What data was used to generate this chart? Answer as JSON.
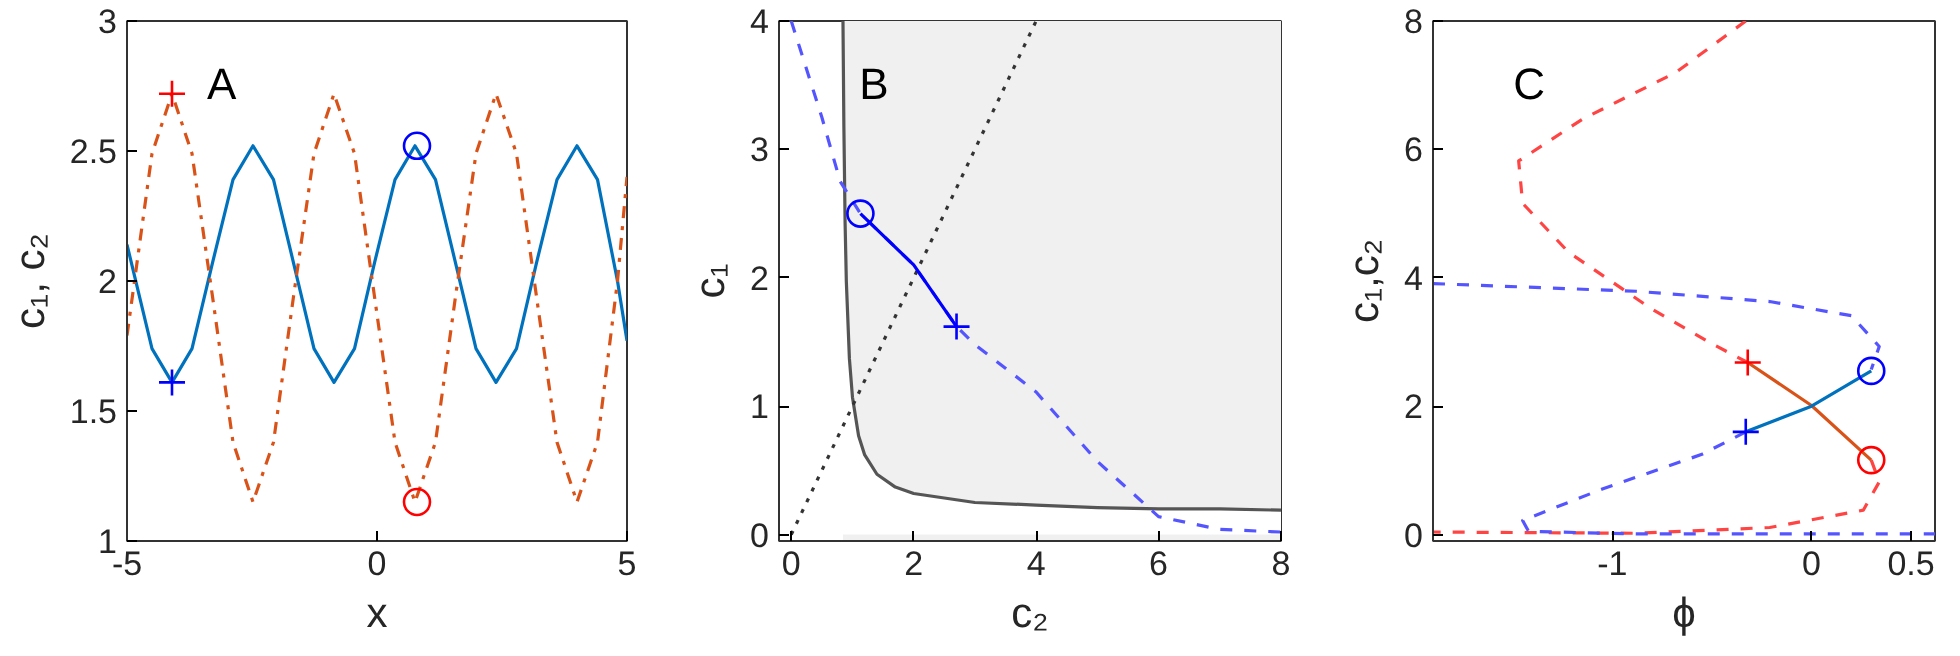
{
  "chart_data": [
    {
      "type": "line",
      "xlabel": "x",
      "ylabel": "c₁, c₂",
      "xlim": [
        -5,
        5
      ],
      "ylim": [
        1,
        3
      ],
      "xticks": [
        -5,
        0,
        5
      ],
      "yticks": [
        1,
        1.5,
        2,
        2.5,
        3
      ],
      "annotations": [
        "A"
      ],
      "series": [
        {
          "color": "#0072bd",
          "line_style": "solid",
          "x": [
            -5.0,
            -4.5,
            -4.1,
            -3.7,
            -3.29,
            -2.88,
            -2.48,
            -2.07,
            -1.67,
            -1.26,
            -0.86,
            -0.45,
            -0.05,
            0.36,
            0.76,
            1.17,
            1.57,
            1.98,
            2.38,
            2.79,
            3.19,
            3.6,
            4.0,
            4.41,
            4.81,
            5.0
          ],
          "values": [
            2.14,
            1.74,
            1.61,
            1.74,
            2.07,
            2.39,
            2.52,
            2.39,
            2.07,
            1.74,
            1.61,
            1.74,
            2.07,
            2.39,
            2.52,
            2.39,
            2.07,
            1.74,
            1.61,
            1.74,
            2.07,
            2.39,
            2.52,
            2.39,
            2.0,
            1.77
          ]
        },
        {
          "color": "#d95319",
          "line_style": "dashdot",
          "x": [
            -5.0,
            -4.5,
            -4.1,
            -3.7,
            -3.29,
            -2.88,
            -2.48,
            -2.07,
            -1.67,
            -1.26,
            -0.86,
            -0.45,
            -0.05,
            0.36,
            0.76,
            1.17,
            1.57,
            1.98,
            2.38,
            2.79,
            3.19,
            3.6,
            4.0,
            4.41,
            4.81,
            5.0
          ],
          "values": [
            1.79,
            2.49,
            2.72,
            2.49,
            1.94,
            1.38,
            1.15,
            1.38,
            1.94,
            2.49,
            2.72,
            2.49,
            1.94,
            1.38,
            1.15,
            1.38,
            1.94,
            2.49,
            2.72,
            2.49,
            1.94,
            1.38,
            1.15,
            1.38,
            2.0,
            2.4
          ]
        },
        {
          "type": "scatter",
          "color": "#ff0000",
          "marker": "cross",
          "x": [
            -4.1
          ],
          "values": [
            2.72
          ]
        },
        {
          "type": "scatter",
          "color": "#0000ff",
          "marker": "cross",
          "x": [
            -4.1
          ],
          "values": [
            1.61
          ]
        },
        {
          "type": "scatter",
          "color": "#0000ff",
          "marker": "circle",
          "x": [
            0.8
          ],
          "values": [
            2.52
          ]
        },
        {
          "type": "scatter",
          "color": "#ff0000",
          "marker": "circle",
          "x": [
            0.8
          ],
          "values": [
            1.15
          ]
        }
      ]
    },
    {
      "type": "line",
      "xlabel": "c₂",
      "ylabel": "c₁",
      "xlim": [
        -0.2,
        8
      ],
      "ylim": [
        -0.05,
        4
      ],
      "xticks": [
        0,
        2,
        4,
        6,
        8
      ],
      "yticks": [
        0,
        1,
        2,
        3,
        4
      ],
      "annotations": [
        "B"
      ],
      "bands": [
        {
          "axis": "x",
          "from": 0.845,
          "to": 8,
          "color": "#f0f0f0"
        }
      ],
      "series": [
        {
          "type": "area",
          "color": "#555555",
          "line_style": "solid",
          "x": [
            0.845,
            0.86,
            0.88,
            0.9,
            0.95,
            1.0,
            1.1,
            1.2,
            1.4,
            1.7,
            2.0,
            3.0,
            4.0,
            5.0,
            6.0,
            7.0,
            8.0
          ],
          "values": [
            4.0,
            3.17,
            2.42,
            1.97,
            1.37,
            1.07,
            0.77,
            0.62,
            0.47,
            0.37,
            0.32,
            0.25,
            0.23,
            0.21,
            0.2,
            0.2,
            0.19
          ]
        },
        {
          "color": "#333333",
          "line_style": "dotted",
          "x": [
            0,
            4
          ],
          "values": [
            0,
            4
          ]
        },
        {
          "color": "#5555ff",
          "line_style": "dashed",
          "x": [
            0,
            0.5,
            0.8,
            1.13,
            2.0,
            2.7,
            3.0,
            4.0,
            5.0,
            6.0,
            7.0,
            8.0
          ],
          "values": [
            4.0,
            3.25,
            2.75,
            2.5,
            2.1,
            1.62,
            1.48,
            1.11,
            0.57,
            0.14,
            0.04,
            0.02
          ]
        },
        {
          "color": "#0000ff",
          "line_style": "solid",
          "x": [
            1.13,
            2.0,
            2.7
          ],
          "values": [
            2.5,
            2.1,
            1.62
          ]
        },
        {
          "type": "scatter",
          "color": "#0000ff",
          "marker": "circle",
          "x": [
            1.13
          ],
          "values": [
            2.5
          ]
        },
        {
          "type": "scatter",
          "color": "#0000ff",
          "marker": "cross",
          "x": [
            2.7
          ],
          "values": [
            1.62
          ]
        }
      ]
    },
    {
      "type": "line",
      "xlabel": "ϕ",
      "ylabel": "c₁,c₂",
      "xlim": [
        -1.9,
        0.62
      ],
      "ylim": [
        -0.1,
        8
      ],
      "xticks": [
        -1,
        0,
        0.5
      ],
      "yticks": [
        0,
        2,
        4,
        6,
        8
      ],
      "annotations": [
        "C"
      ],
      "series": [
        {
          "color": "#ff4444",
          "line_style": "dashed",
          "x": [
            -0.33,
            -0.68,
            -1.15,
            -1.47,
            -1.45,
            -1.22,
            -0.81,
            -0.51,
            -0.32
          ],
          "values": [
            8,
            7.2,
            6.47,
            5.82,
            5.16,
            4.4,
            3.53,
            2.99,
            2.68
          ]
        },
        {
          "color": "#ff4444",
          "line_style": "dashed",
          "x": [
            0.3,
            0.34,
            0.26,
            -0.21,
            -0.88,
            -1.9
          ],
          "values": [
            1.16,
            0.82,
            0.38,
            0.11,
            0.02,
            0.04
          ]
        },
        {
          "color": "#5555ff",
          "line_style": "dashed",
          "x": [
            -1.9,
            -0.88,
            -0.21,
            0.2,
            0.34,
            0.3
          ],
          "values": [
            3.91,
            3.79,
            3.63,
            3.41,
            2.93,
            2.57
          ]
        },
        {
          "color": "#5555ff",
          "line_style": "dashed",
          "x": [
            -0.33,
            -0.55,
            -1.05,
            -1.45,
            -1.42,
            -0.88,
            0.62
          ],
          "values": [
            1.6,
            1.25,
            0.71,
            0.22,
            0.05,
            0.01,
            0.01
          ]
        },
        {
          "color": "#d95319",
          "line_style": "solid",
          "x": [
            -0.32,
            0.0,
            0.3
          ],
          "values": [
            2.68,
            2.01,
            1.16
          ]
        },
        {
          "color": "#0072bd",
          "line_style": "solid",
          "x": [
            -0.33,
            0.0,
            0.3
          ],
          "values": [
            1.6,
            2.0,
            2.55
          ]
        },
        {
          "type": "scatter",
          "color": "#ff0000",
          "marker": "cross",
          "x": [
            -0.32
          ],
          "values": [
            2.68
          ]
        },
        {
          "type": "scatter",
          "color": "#0000ff",
          "marker": "cross",
          "x": [
            -0.33
          ],
          "values": [
            1.6
          ]
        },
        {
          "type": "scatter",
          "color": "#0000ff",
          "marker": "circle",
          "x": [
            0.3
          ],
          "values": [
            2.55
          ]
        },
        {
          "type": "scatter",
          "color": "#ff0000",
          "marker": "circle",
          "x": [
            0.3
          ],
          "values": [
            1.16
          ]
        }
      ]
    }
  ]
}
